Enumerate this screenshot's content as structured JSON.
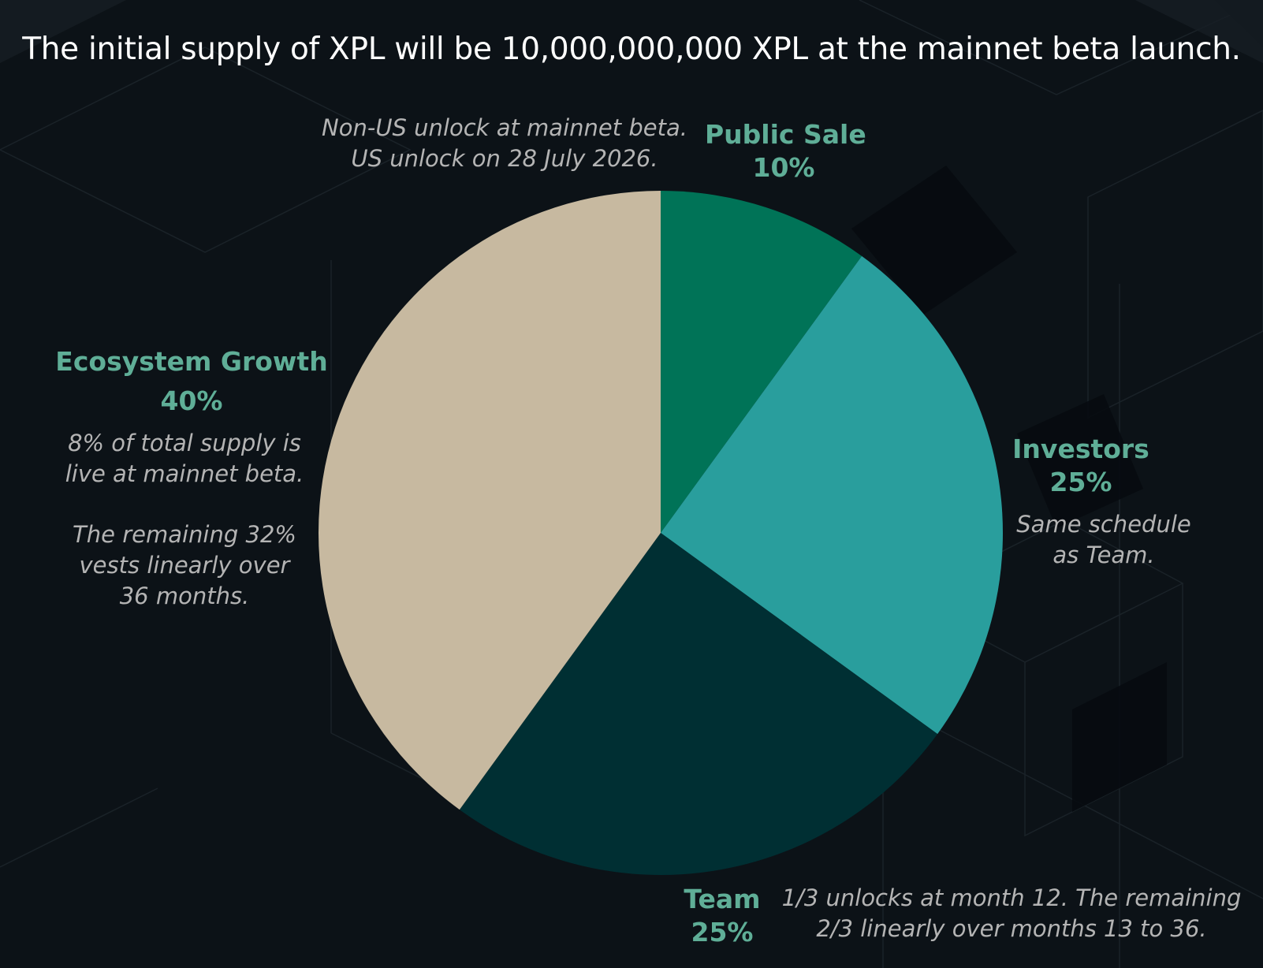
{
  "header": {
    "title": "The initial supply of XPL will be 10,000,000,000 XPL at the mainnet beta launch."
  },
  "colors": {
    "background": "#0c1217",
    "label": "#5fae97",
    "note": "#b4b4b4",
    "public_sale": "#007357",
    "investors": "#299e9d",
    "team": "#002f33",
    "ecosystem_growth": "#c7b9a0"
  },
  "chart_data": {
    "type": "pie",
    "title": "The initial supply of XPL will be 10,000,000,000 XPL at the mainnet beta launch.",
    "start_angle_deg": 0,
    "direction": "clockwise",
    "slices": [
      {
        "key": "public_sale",
        "label": "Public Sale",
        "value": 10,
        "display": "10%",
        "color": "#007357",
        "note": [
          "Non-US unlock at mainnet beta.",
          "US unlock on 28 July 2026."
        ]
      },
      {
        "key": "investors",
        "label": "Investors",
        "value": 25,
        "display": "25%",
        "color": "#299e9d",
        "note": [
          "Same schedule",
          "as Team."
        ]
      },
      {
        "key": "team",
        "label": "Team",
        "value": 25,
        "display": "25%",
        "color": "#002f33",
        "note": [
          "1/3 unlocks at month 12. The remaining",
          "2/3 linearly over months 13 to 36."
        ]
      },
      {
        "key": "ecosystem_growth",
        "label": "Ecosystem Growth",
        "value": 40,
        "display": "40%",
        "color": "#c7b9a0",
        "note": [
          "8% of total supply is",
          "live at mainnet beta.",
          "The remaining 32%",
          "vests linearly over",
          "36 months."
        ]
      }
    ]
  }
}
